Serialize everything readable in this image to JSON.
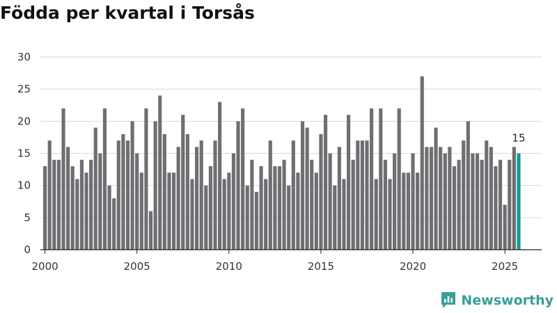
{
  "title": "Födda per kvartal i Torsås",
  "brand": {
    "name": "Newsworthy",
    "logo_icon": "newsworthy-chart-bubble-icon",
    "color": "#3a9e99"
  },
  "colors": {
    "bar": "#6f6e72",
    "highlight": "#139a93",
    "grid": "#d9d9d9",
    "axis": "#222222"
  },
  "chart_data": {
    "type": "bar",
    "title": "Födda per kvartal i Torsås",
    "xlabel": "",
    "ylabel": "",
    "ylim": [
      0,
      30
    ],
    "yticks": [
      0,
      5,
      10,
      15,
      20,
      25,
      30
    ],
    "xticks": [
      2000,
      2005,
      2010,
      2015,
      2020,
      2025
    ],
    "xlim": [
      1999.75,
      2027.0
    ],
    "grid": "horizontal",
    "legend": "none",
    "x_start_year": 2000,
    "periods_per_year": 4,
    "values": [
      13,
      17,
      14,
      14,
      22,
      16,
      13,
      11,
      14,
      12,
      14,
      19,
      15,
      22,
      10,
      8,
      17,
      18,
      17,
      20,
      15,
      12,
      22,
      6,
      20,
      24,
      18,
      12,
      12,
      16,
      21,
      18,
      11,
      16,
      17,
      10,
      13,
      17,
      23,
      11,
      12,
      15,
      20,
      22,
      10,
      14,
      9,
      13,
      11,
      17,
      13,
      13,
      14,
      10,
      17,
      12,
      20,
      19,
      14,
      12,
      18,
      21,
      15,
      10,
      16,
      11,
      21,
      14,
      17,
      17,
      17,
      22,
      11,
      22,
      14,
      11,
      15,
      22,
      12,
      12,
      15,
      12,
      27,
      16,
      16,
      19,
      16,
      15,
      16,
      13,
      14,
      17,
      20,
      15,
      15,
      14,
      17,
      16,
      13,
      14,
      7,
      14,
      16,
      15
    ],
    "highlight_last": true,
    "annotation": {
      "text": "15",
      "target": "last"
    }
  }
}
